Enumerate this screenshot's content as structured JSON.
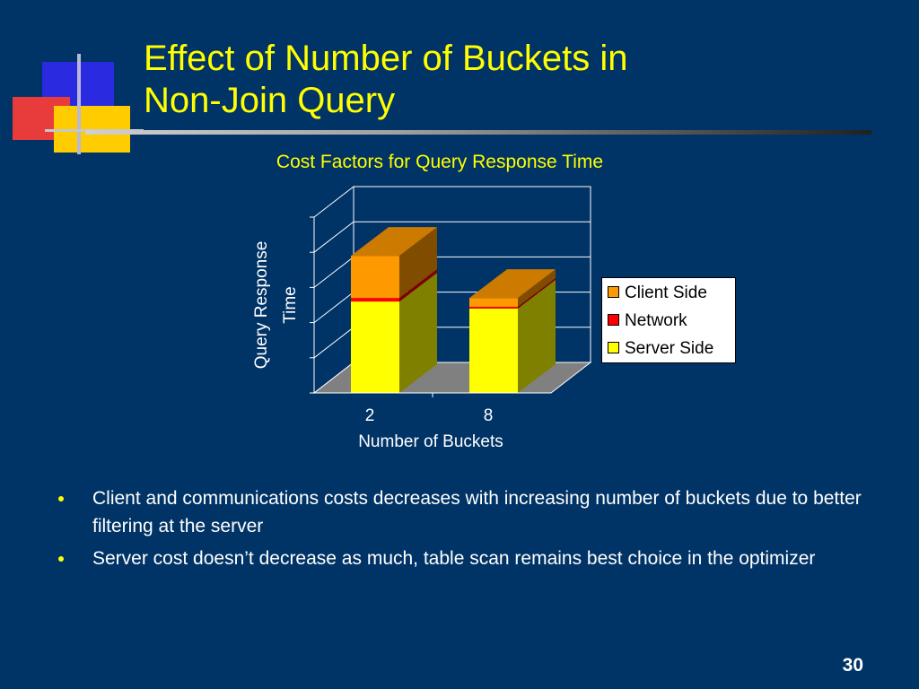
{
  "slide": {
    "title_line1": "Effect of Number of Buckets in",
    "title_line2": "Non-Join Query",
    "bullets": [
      "Client and communications costs decreases with increasing number of buckets due to better filtering at the server",
      "Server cost doesn’t decrease as much, table scan remains best choice in the optimizer"
    ],
    "page_number": "30",
    "colors": {
      "background": "#003366",
      "title": "#ffff00",
      "text": "#ffffff"
    }
  },
  "chart_data": {
    "type": "bar",
    "stacked": true,
    "three_d": true,
    "title": "Cost Factors for Query Response Time",
    "xlabel": "Number of Buckets",
    "ylabel": "Query Response Time",
    "categories": [
      "2",
      "8"
    ],
    "ylim": [
      0,
      100
    ],
    "grid": true,
    "legend_position": "right",
    "series": [
      {
        "name": "Server Side",
        "values": [
          52,
          48
        ],
        "color": "#ffff00"
      },
      {
        "name": "Network",
        "values": [
          2,
          1
        ],
        "color": "#ff0000"
      },
      {
        "name": "Client Side",
        "values": [
          24,
          5
        ],
        "color": "#ff9900"
      }
    ],
    "legend_order": [
      "Client Side",
      "Network",
      "Server Side"
    ]
  }
}
